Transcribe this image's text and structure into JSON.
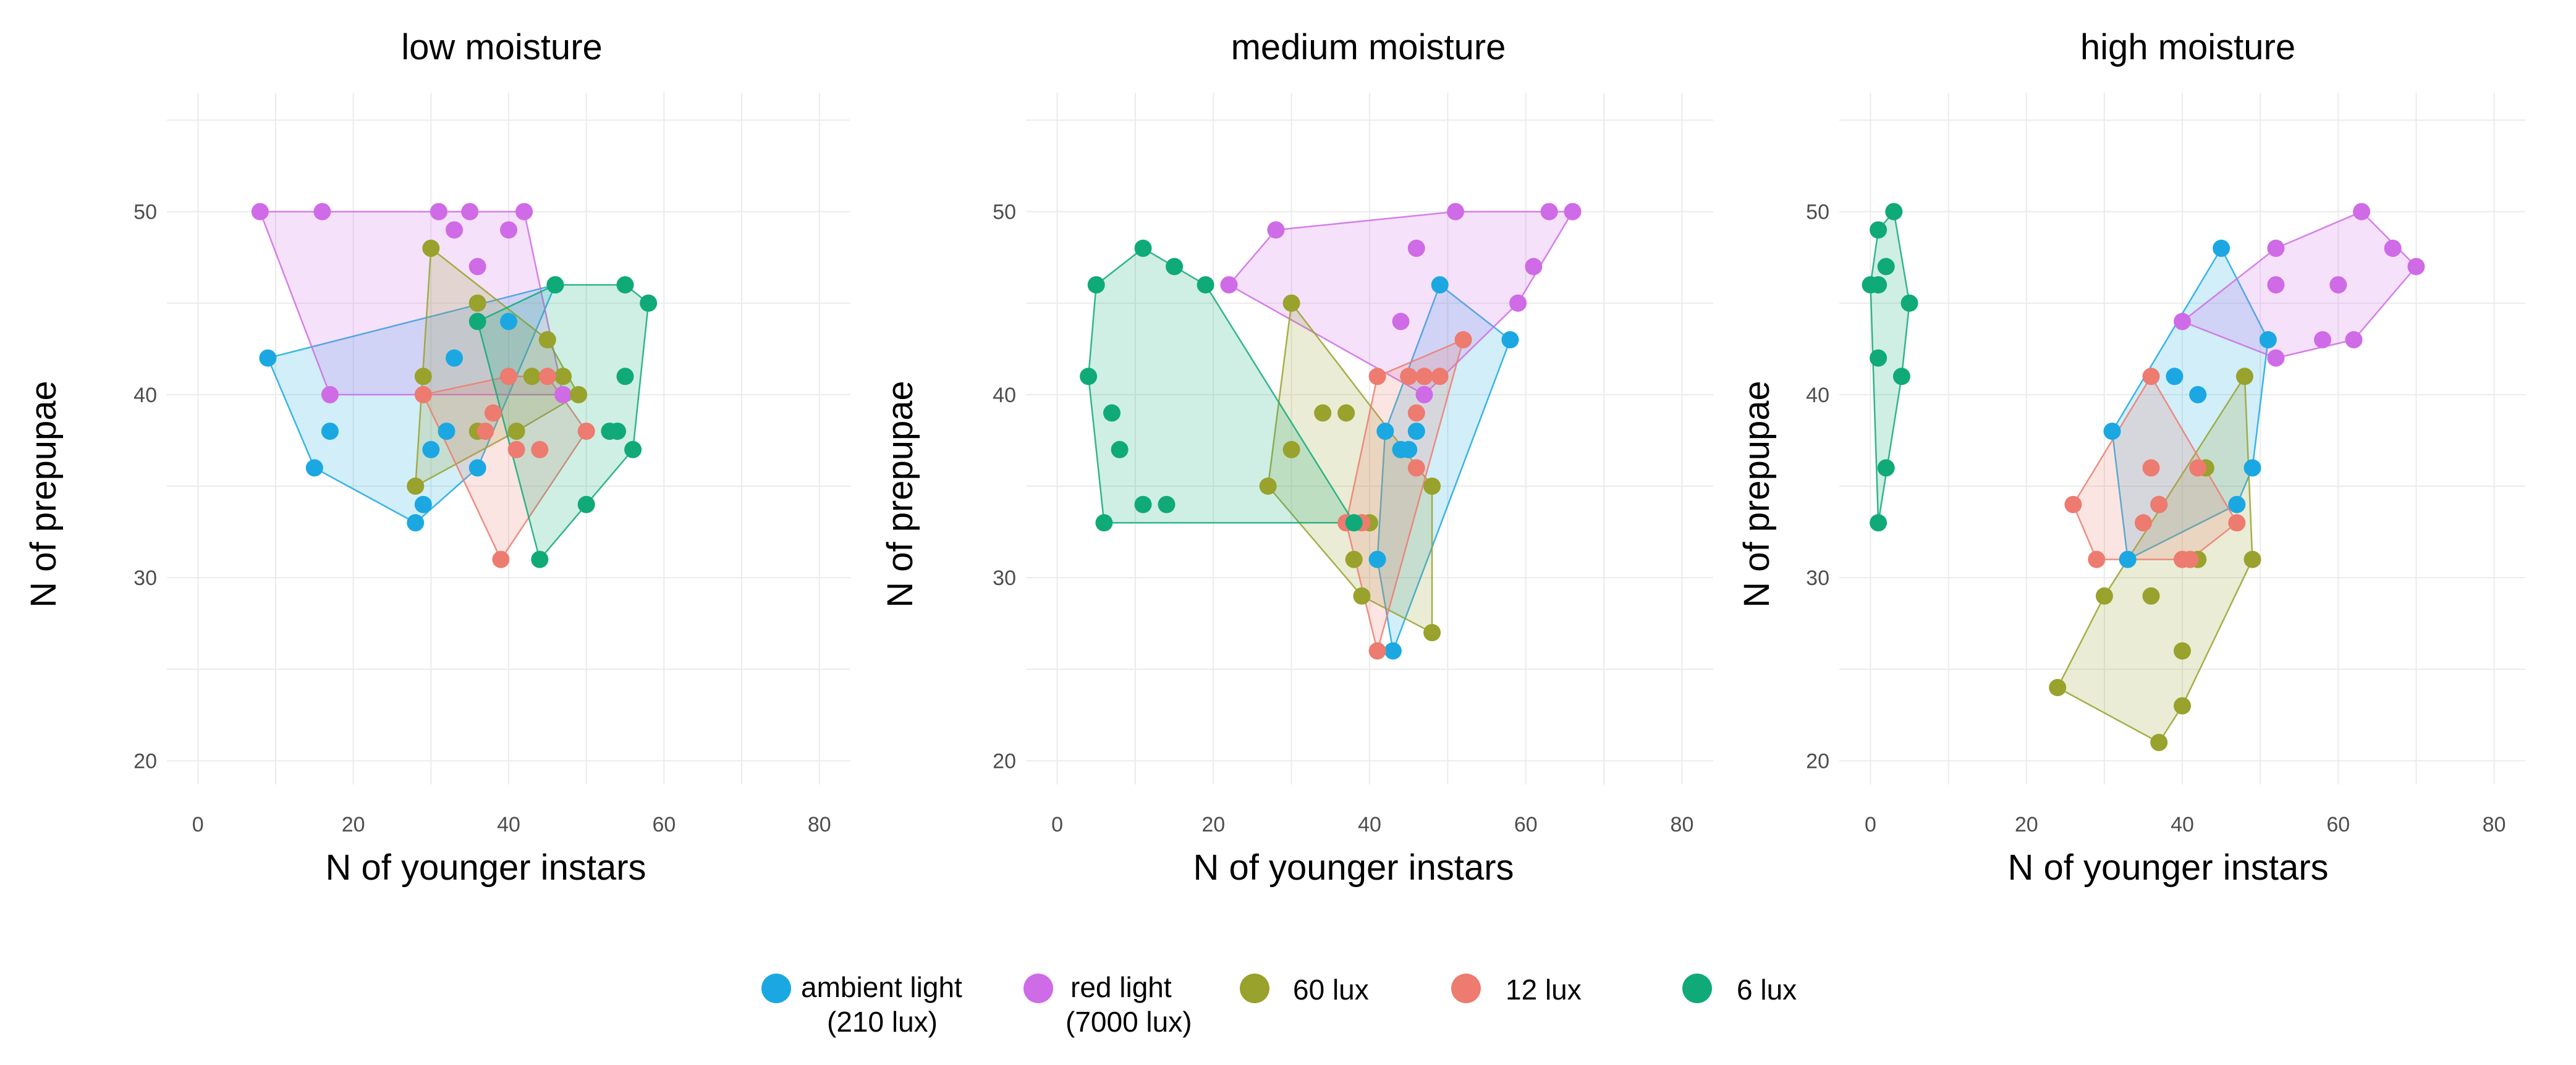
{
  "chart_data": [
    {
      "type": "scatter",
      "title": "low moisture",
      "xlabel": "N of younger instars",
      "ylabel": "N of prepupae",
      "xlim": [
        -4,
        84
      ],
      "ylim": [
        18.7,
        56.5
      ],
      "xticks": [
        0,
        20,
        40,
        60,
        80
      ],
      "yticks": [
        20,
        30,
        40,
        50
      ],
      "xtick_labels": [
        "0",
        "20",
        "40",
        "60",
        "80"
      ],
      "ytick_labels": [
        "20",
        "30",
        "40",
        "50"
      ],
      "hull_fill": true,
      "series": [
        {
          "name": "ambient light (210 lux)",
          "color": "#1ba8e2",
          "points": [
            [
              9,
              42
            ],
            [
              15,
              36
            ],
            [
              17,
              38
            ],
            [
              28,
              33
            ],
            [
              29,
              34
            ],
            [
              30,
              37
            ],
            [
              32,
              38
            ],
            [
              33,
              42
            ],
            [
              36,
              36
            ],
            [
              40,
              44
            ],
            [
              46,
              46
            ]
          ]
        },
        {
          "name": "red light (7000 lux)",
          "color": "#cf6be6",
          "points": [
            [
              8,
              50
            ],
            [
              16,
              50
            ],
            [
              17,
              40
            ],
            [
              31,
              50
            ],
            [
              33,
              49
            ],
            [
              35,
              50
            ],
            [
              36,
              47
            ],
            [
              40,
              49
            ],
            [
              42,
              50
            ],
            [
              47,
              40
            ]
          ]
        },
        {
          "name": "60 lux",
          "color": "#98a22c",
          "points": [
            [
              28,
              35
            ],
            [
              29,
              41
            ],
            [
              30,
              48
            ],
            [
              36,
              45
            ],
            [
              36,
              38
            ],
            [
              41,
              38
            ],
            [
              43,
              41
            ],
            [
              45,
              43
            ],
            [
              47,
              41
            ],
            [
              49,
              40
            ]
          ]
        },
        {
          "name": "12 lux",
          "color": "#ed7b70",
          "points": [
            [
              29,
              40
            ],
            [
              37,
              38
            ],
            [
              38,
              39
            ],
            [
              39,
              31
            ],
            [
              40,
              41
            ],
            [
              41,
              37
            ],
            [
              44,
              37
            ],
            [
              45,
              41
            ],
            [
              50,
              38
            ]
          ]
        },
        {
          "name": "6 lux",
          "color": "#0faa77",
          "points": [
            [
              36,
              44
            ],
            [
              44,
              31
            ],
            [
              46,
              46
            ],
            [
              50,
              34
            ],
            [
              53,
              38
            ],
            [
              54,
              38
            ],
            [
              55,
              46
            ],
            [
              55,
              41
            ],
            [
              56,
              37
            ],
            [
              58,
              45
            ]
          ]
        }
      ]
    },
    {
      "type": "scatter",
      "title": "medium moisture",
      "xlabel": "N of younger instars",
      "ylabel": "N of prepupae",
      "xlim": [
        -4,
        84
      ],
      "ylim": [
        18.7,
        56.5
      ],
      "xticks": [
        0,
        20,
        40,
        60,
        80
      ],
      "yticks": [
        20,
        30,
        40,
        50
      ],
      "xtick_labels": [
        "0",
        "20",
        "40",
        "60",
        "80"
      ],
      "ytick_labels": [
        "20",
        "30",
        "40",
        "50"
      ],
      "hull_fill": true,
      "series": [
        {
          "name": "ambient light (210 lux)",
          "color": "#1ba8e2",
          "points": [
            [
              41,
              31
            ],
            [
              42,
              38
            ],
            [
              43,
              26
            ],
            [
              44,
              37
            ],
            [
              45,
              37
            ],
            [
              46,
              38
            ],
            [
              49,
              46
            ],
            [
              58,
              43
            ]
          ]
        },
        {
          "name": "red light (7000 lux)",
          "color": "#cf6be6",
          "points": [
            [
              22,
              46
            ],
            [
              28,
              49
            ],
            [
              44,
              44
            ],
            [
              46,
              48
            ],
            [
              47,
              40
            ],
            [
              51,
              50
            ],
            [
              59,
              45
            ],
            [
              61,
              47
            ],
            [
              63,
              50
            ],
            [
              66,
              50
            ]
          ]
        },
        {
          "name": "60 lux",
          "color": "#98a22c",
          "points": [
            [
              27,
              35
            ],
            [
              30,
              45
            ],
            [
              30,
              37
            ],
            [
              34,
              39
            ],
            [
              37,
              39
            ],
            [
              38,
              31
            ],
            [
              39,
              29
            ],
            [
              40,
              33
            ],
            [
              48,
              35
            ],
            [
              48,
              27
            ]
          ]
        },
        {
          "name": "12 lux",
          "color": "#ed7b70",
          "points": [
            [
              37,
              33
            ],
            [
              39,
              33
            ],
            [
              41,
              26
            ],
            [
              41,
              41
            ],
            [
              45,
              41
            ],
            [
              46,
              39
            ],
            [
              46,
              36
            ],
            [
              47,
              41
            ],
            [
              49,
              41
            ],
            [
              52,
              43
            ]
          ]
        },
        {
          "name": "6 lux",
          "color": "#0faa77",
          "points": [
            [
              4,
              41
            ],
            [
              5,
              46
            ],
            [
              6,
              33
            ],
            [
              7,
              39
            ],
            [
              8,
              37
            ],
            [
              11,
              34
            ],
            [
              11,
              48
            ],
            [
              14,
              34
            ],
            [
              15,
              47
            ],
            [
              19,
              46
            ],
            [
              38,
              33
            ]
          ]
        }
      ]
    },
    {
      "type": "scatter",
      "title": "high moisture",
      "xlabel": "N of younger instars",
      "ylabel": "N of prepupae",
      "xlim": [
        -4,
        84
      ],
      "ylim": [
        18.7,
        56.5
      ],
      "xticks": [
        0,
        20,
        40,
        60,
        80
      ],
      "yticks": [
        20,
        30,
        40,
        50
      ],
      "xtick_labels": [
        "0",
        "20",
        "40",
        "60",
        "80"
      ],
      "ytick_labels": [
        "20",
        "30",
        "40",
        "50"
      ],
      "hull_fill": true,
      "series": [
        {
          "name": "ambient light (210 lux)",
          "color": "#1ba8e2",
          "points": [
            [
              31,
              38
            ],
            [
              33,
              31
            ],
            [
              37,
              34
            ],
            [
              39,
              41
            ],
            [
              42,
              40
            ],
            [
              45,
              48
            ],
            [
              47,
              34
            ],
            [
              49,
              36
            ],
            [
              51,
              43
            ]
          ]
        },
        {
          "name": "red light (7000 lux)",
          "color": "#cf6be6",
          "points": [
            [
              40,
              44
            ],
            [
              52,
              48
            ],
            [
              52,
              46
            ],
            [
              52,
              42
            ],
            [
              58,
              43
            ],
            [
              60,
              46
            ],
            [
              62,
              43
            ],
            [
              63,
              50
            ],
            [
              67,
              48
            ],
            [
              70,
              47
            ]
          ]
        },
        {
          "name": "60 lux",
          "color": "#98a22c",
          "points": [
            [
              24,
              24
            ],
            [
              30,
              29
            ],
            [
              36,
              29
            ],
            [
              37,
              21
            ],
            [
              40,
              26
            ],
            [
              40,
              23
            ],
            [
              42,
              31
            ],
            [
              43,
              36
            ],
            [
              48,
              41
            ],
            [
              49,
              31
            ]
          ]
        },
        {
          "name": "12 lux",
          "color": "#ed7b70",
          "points": [
            [
              26,
              34
            ],
            [
              29,
              31
            ],
            [
              35,
              33
            ],
            [
              36,
              41
            ],
            [
              36,
              36
            ],
            [
              37,
              34
            ],
            [
              40,
              31
            ],
            [
              41,
              31
            ],
            [
              42,
              36
            ],
            [
              47,
              33
            ]
          ]
        },
        {
          "name": "6 lux",
          "color": "#0faa77",
          "points": [
            [
              0,
              46
            ],
            [
              1,
              33
            ],
            [
              1,
              42
            ],
            [
              1,
              49
            ],
            [
              1,
              46
            ],
            [
              2,
              36
            ],
            [
              2,
              47
            ],
            [
              3,
              50
            ],
            [
              4,
              41
            ],
            [
              5,
              45
            ]
          ]
        }
      ]
    }
  ],
  "legend": {
    "placement": "bottom-center",
    "items": [
      {
        "label": "ambient light",
        "sublabel": "(210 lux)",
        "color": "#1ba8e2"
      },
      {
        "label": "red light",
        "sublabel": "(7000 lux)",
        "color": "#cf6be6"
      },
      {
        "label": "60 lux",
        "sublabel": "",
        "color": "#98a22c"
      },
      {
        "label": "12 lux",
        "sublabel": "",
        "color": "#ed7b70"
      },
      {
        "label": "6 lux",
        "sublabel": "",
        "color": "#0faa77"
      }
    ]
  }
}
